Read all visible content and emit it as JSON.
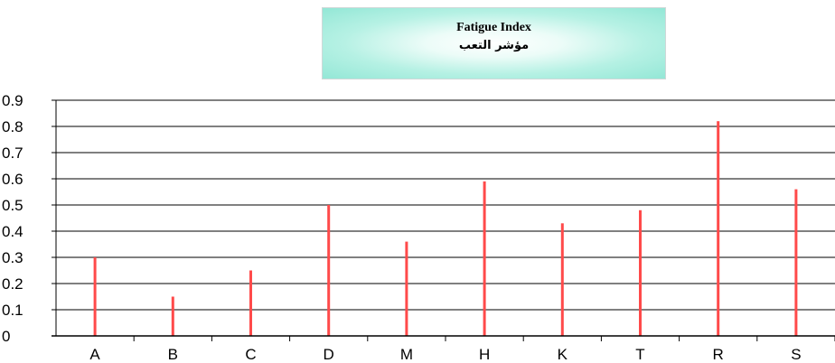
{
  "title": {
    "english": "Fatigue Index",
    "arabic": "مؤشر التعب"
  },
  "colors": {
    "bar": "#ff4a4a",
    "grid": "#000000",
    "title_bg": "#93e7d6"
  },
  "chart_data": {
    "type": "bar",
    "title": "Fatigue Index",
    "subtitle": "مؤشر التعب",
    "categories": [
      "A",
      "B",
      "C",
      "D",
      "M",
      "H",
      "K",
      "T",
      "R",
      "S"
    ],
    "values": [
      0.3,
      0.15,
      0.25,
      0.5,
      0.36,
      0.59,
      0.43,
      0.48,
      0.82,
      0.56
    ],
    "ylim": [
      0,
      0.9
    ],
    "yticks": [
      "0",
      "0.1",
      "0.2",
      "0.3",
      "0.4",
      "0.5",
      "0.6",
      "0.7",
      "0.8",
      "0.9"
    ],
    "grid": true,
    "xlabel": "",
    "ylabel": ""
  }
}
